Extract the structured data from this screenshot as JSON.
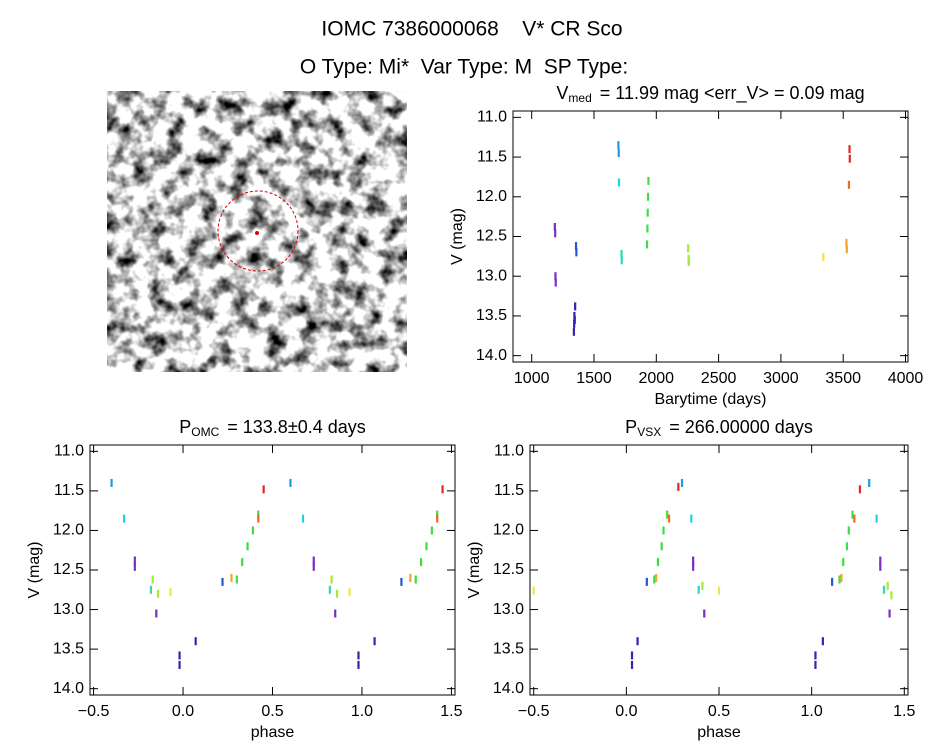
{
  "header": {
    "title": "IOMC 7386000068    V* CR Sco",
    "subtitle": "O Type: Mi*  Var Type: M  SP Type:"
  },
  "chart_data": [
    {
      "type": "scatter",
      "title": {
        "main": "V",
        "sub": "med",
        "rest": "= 11.99 mag <err_V> = 0.09 mag"
      },
      "x_label": "Barytime (days)",
      "y_label": "V (mag)",
      "xlim": [
        850,
        4020
      ],
      "ylim": [
        10.92,
        14.08
      ],
      "y_inverted": true,
      "xticks": [
        1000,
        1500,
        2000,
        2500,
        3000,
        3500,
        4000
      ],
      "yticks": [
        {
          "value": 11,
          "label": "11.0"
        },
        11.5,
        {
          "value": 12,
          "label": "12.0"
        },
        12.5,
        {
          "value": 13,
          "label": "13.0"
        },
        13.5,
        {
          "value": 14,
          "label": "14.0"
        }
      ],
      "series": [
        {
          "color": "#7b2fbf",
          "x": [
            1185,
            1188,
            1190,
            1192
          ],
          "values": [
            12.38,
            12.46,
            13.0,
            13.08
          ]
        },
        {
          "color": "#3a1fb0",
          "x": [
            1338,
            1340,
            1342,
            1345,
            1348
          ],
          "values": [
            13.7,
            13.6,
            13.5,
            13.55,
            13.38
          ]
        },
        {
          "color": "#2457d6",
          "x": [
            1355,
            1358
          ],
          "values": [
            12.62,
            12.7
          ]
        },
        {
          "color": "#1e9be0",
          "x": [
            1695,
            1698
          ],
          "values": [
            11.35,
            11.45
          ]
        },
        {
          "color": "#22d0e8",
          "x": [
            1700
          ],
          "values": [
            11.82
          ]
        },
        {
          "color": "#33d8b8",
          "x": [
            1720,
            1722
          ],
          "values": [
            12.72,
            12.8
          ]
        },
        {
          "color": "#3fdd3f",
          "x": [
            1925,
            1928,
            1930,
            1933,
            1936
          ],
          "values": [
            12.6,
            12.4,
            12.2,
            12.0,
            11.8
          ]
        },
        {
          "color": "#a8e838",
          "x": [
            2255,
            2258,
            2260
          ],
          "values": [
            12.65,
            12.78,
            12.82
          ]
        },
        {
          "color": "#efe646",
          "x": [
            3340
          ],
          "values": [
            12.76
          ]
        },
        {
          "color": "#f0a626",
          "x": [
            3525,
            3528
          ],
          "values": [
            12.58,
            12.66
          ]
        },
        {
          "color": "#f06a22",
          "x": [
            3545
          ],
          "values": [
            11.85
          ]
        },
        {
          "color": "#e02828",
          "x": [
            3550,
            3552
          ],
          "values": [
            11.4,
            11.52
          ]
        }
      ]
    },
    {
      "type": "scatter",
      "title": {
        "main": "P",
        "sub": "OMC",
        "rest": "= 133.8±0.4 days"
      },
      "x_label": "phase",
      "y_label": "V (mag)",
      "xlim": [
        -0.52,
        1.52
      ],
      "ylim": [
        10.92,
        14.08
      ],
      "y_inverted": true,
      "xticks": [
        {
          "value": -0.5,
          "label": "−0.5"
        },
        {
          "value": 0,
          "label": "0.0"
        },
        0.5,
        {
          "value": 1,
          "label": "1.0"
        },
        1.5
      ],
      "yticks": [
        {
          "value": 11,
          "label": "11.0"
        },
        11.5,
        {
          "value": 12,
          "label": "12.0"
        },
        12.5,
        {
          "value": 13,
          "label": "13.0"
        },
        13.5,
        {
          "value": 14,
          "label": "14.0"
        }
      ],
      "series": [
        {
          "color": "#7b2fbf",
          "x": [
            -0.27,
            -0.27,
            -0.15,
            0.73,
            0.73,
            0.85
          ],
          "values": [
            12.38,
            12.46,
            13.05,
            12.38,
            12.46,
            13.05
          ]
        },
        {
          "color": "#3a1fb0",
          "x": [
            -0.02,
            -0.02,
            0.07,
            0.98,
            0.98,
            1.07
          ],
          "values": [
            13.7,
            13.58,
            13.4,
            13.7,
            13.58,
            13.4
          ]
        },
        {
          "color": "#2457d6",
          "x": [
            0.22,
            1.22
          ],
          "values": [
            12.65,
            12.65
          ]
        },
        {
          "color": "#1e9be0",
          "x": [
            -0.4,
            0.6
          ],
          "values": [
            11.4,
            11.4
          ]
        },
        {
          "color": "#22d0e8",
          "x": [
            -0.33,
            0.67
          ],
          "values": [
            11.85,
            11.85
          ]
        },
        {
          "color": "#33d8b8",
          "x": [
            -0.18,
            0.82
          ],
          "values": [
            12.75,
            12.75
          ]
        },
        {
          "color": "#3fdd3f",
          "x": [
            0.3,
            0.33,
            0.36,
            0.39,
            0.42,
            1.3,
            1.33,
            1.36,
            1.39,
            1.42
          ],
          "values": [
            12.62,
            12.4,
            12.2,
            12.0,
            11.8,
            12.62,
            12.4,
            12.2,
            12.0,
            11.8
          ]
        },
        {
          "color": "#a8e838",
          "x": [
            -0.17,
            -0.14,
            0.83,
            0.86
          ],
          "values": [
            12.62,
            12.8,
            12.62,
            12.8
          ]
        },
        {
          "color": "#efe646",
          "x": [
            -0.07,
            0.93
          ],
          "values": [
            12.78,
            12.78
          ]
        },
        {
          "color": "#f0a626",
          "x": [
            0.27,
            1.27
          ],
          "values": [
            12.6,
            12.6
          ]
        },
        {
          "color": "#f06a22",
          "x": [
            0.42,
            1.42
          ],
          "values": [
            11.85,
            11.85
          ]
        },
        {
          "color": "#e02828",
          "x": [
            0.45,
            1.45
          ],
          "values": [
            11.48,
            11.48
          ]
        }
      ]
    },
    {
      "type": "scatter",
      "title": {
        "main": "P",
        "sub": "VSX",
        "rest": "= 266.00000 days"
      },
      "x_label": "phase",
      "y_label": "V (mag)",
      "xlim": [
        -0.52,
        1.52
      ],
      "ylim": [
        10.92,
        14.08
      ],
      "y_inverted": true,
      "xticks": [
        {
          "value": -0.5,
          "label": "−0.5"
        },
        {
          "value": 0,
          "label": "0.0"
        },
        0.5,
        {
          "value": 1,
          "label": "1.0"
        },
        1.5
      ],
      "yticks": [
        {
          "value": 11,
          "label": "11.0"
        },
        11.5,
        {
          "value": 12,
          "label": "12.0"
        },
        12.5,
        {
          "value": 13,
          "label": "13.0"
        },
        13.5,
        {
          "value": 14,
          "label": "14.0"
        }
      ],
      "series": [
        {
          "color": "#7b2fbf",
          "x": [
            0.36,
            0.36,
            0.42,
            1.37,
            1.37,
            1.42
          ],
          "values": [
            12.38,
            12.46,
            13.05,
            12.38,
            12.46,
            13.05
          ]
        },
        {
          "color": "#3a1fb0",
          "x": [
            0.03,
            0.03,
            0.06,
            1.02,
            1.02,
            1.06
          ],
          "values": [
            13.7,
            13.58,
            13.4,
            13.7,
            13.58,
            13.4
          ]
        },
        {
          "color": "#2457d6",
          "x": [
            0.11,
            1.11
          ],
          "values": [
            12.65,
            12.65
          ]
        },
        {
          "color": "#1e9be0",
          "x": [
            0.3,
            1.31
          ],
          "values": [
            11.4,
            11.4
          ]
        },
        {
          "color": "#22d0e8",
          "x": [
            0.35,
            1.35
          ],
          "values": [
            11.85,
            11.85
          ]
        },
        {
          "color": "#33d8b8",
          "x": [
            0.39,
            1.39
          ],
          "values": [
            12.75,
            12.75
          ]
        },
        {
          "color": "#3fdd3f",
          "x": [
            0.15,
            0.17,
            0.19,
            0.2,
            0.22,
            1.15,
            1.17,
            1.19,
            1.2,
            1.22
          ],
          "values": [
            12.62,
            12.4,
            12.2,
            12.0,
            11.8,
            12.62,
            12.4,
            12.2,
            12.0,
            11.8
          ]
        },
        {
          "color": "#a8e838",
          "x": [
            0.41,
            1.41,
            1.43
          ],
          "values": [
            12.7,
            12.7,
            12.82
          ]
        },
        {
          "color": "#efe646",
          "x": [
            -0.5,
            0.5
          ],
          "values": [
            12.76,
            12.76
          ]
        },
        {
          "color": "#f0a626",
          "x": [
            0.16,
            1.16
          ],
          "values": [
            12.6,
            12.6
          ]
        },
        {
          "color": "#f06a22",
          "x": [
            0.23,
            1.23
          ],
          "values": [
            11.85,
            11.85
          ]
        },
        {
          "color": "#e02828",
          "x": [
            0.28,
            1.26
          ],
          "values": [
            11.45,
            11.48
          ]
        }
      ]
    }
  ]
}
